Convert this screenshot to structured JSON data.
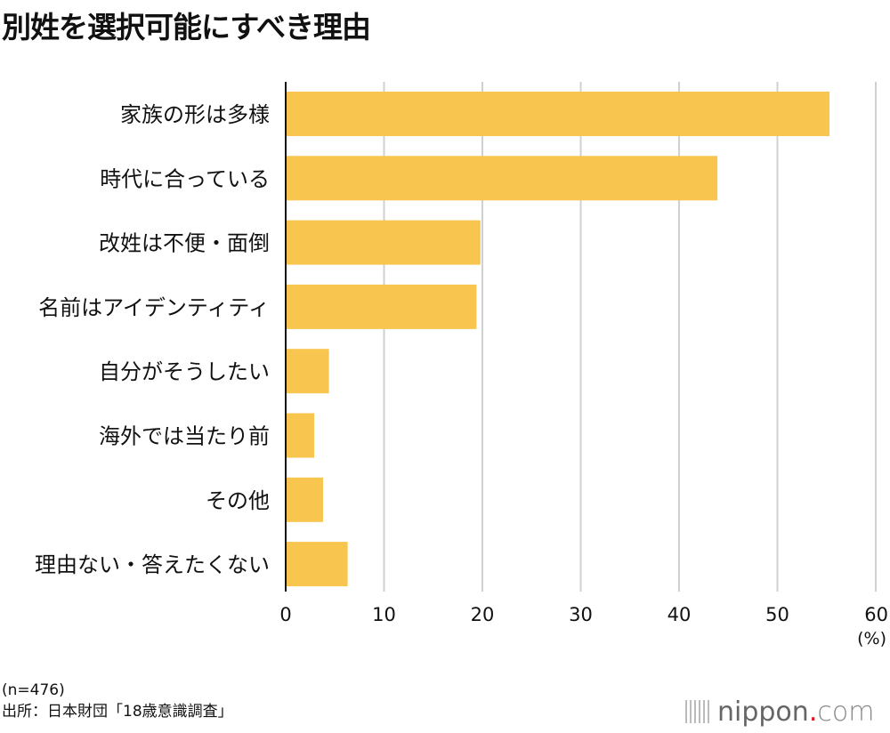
{
  "chart_data": {
    "type": "bar",
    "orientation": "horizontal",
    "title": "別姓を選択可能にすべき理由",
    "categories": [
      "家族の形は多様",
      "時代に合っている",
      "改姓は不便・面倒",
      "名前はアイデンティティ",
      "自分がそうしたい",
      "海外では当たり前",
      "その他",
      "理由ない・答えたくない"
    ],
    "values": [
      55.3,
      43.9,
      19.8,
      19.4,
      4.4,
      2.9,
      3.8,
      6.3
    ],
    "xlim": [
      0,
      60
    ],
    "xticks": [
      "0",
      "10",
      "20",
      "30",
      "40",
      "50",
      "60"
    ],
    "xunit": "(%)",
    "grid": true,
    "bar_color": "#f8c54f",
    "grid_color": "#d0d0d0"
  },
  "footer": {
    "sample": "(n=476)",
    "source": "出所：日本財団「18歳意識調査」",
    "logo": {
      "main": "nippon",
      "dot": ".",
      "com": "com"
    }
  }
}
